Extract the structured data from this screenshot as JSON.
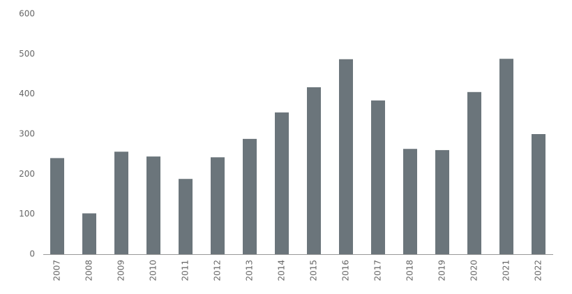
{
  "chart_data": {
    "type": "bar",
    "categories": [
      "2007",
      "2008",
      "2009",
      "2010",
      "2011",
      "2012",
      "2013",
      "2014",
      "2015",
      "2016",
      "2017",
      "2018",
      "2019",
      "2020",
      "2021",
      "2022"
    ],
    "values": [
      240,
      102,
      256,
      244,
      188,
      242,
      288,
      354,
      417,
      487,
      384,
      263,
      260,
      405,
      488,
      300
    ],
    "color": "#6b757b",
    "ylim": [
      0,
      600
    ],
    "yticks": [
      0,
      100,
      200,
      300,
      400,
      500,
      600
    ],
    "grid": false
  }
}
